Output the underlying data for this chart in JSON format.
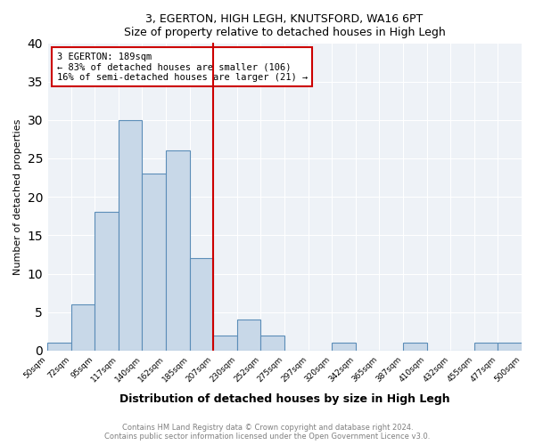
{
  "title": "3, EGERTON, HIGH LEGH, KNUTSFORD, WA16 6PT",
  "subtitle": "Size of property relative to detached houses in High Legh",
  "xlabel": "Distribution of detached houses by size in High Legh",
  "ylabel": "Number of detached properties",
  "bin_edges": [
    "50sqm",
    "72sqm",
    "95sqm",
    "117sqm",
    "140sqm",
    "162sqm",
    "185sqm",
    "207sqm",
    "230sqm",
    "252sqm",
    "275sqm",
    "297sqm",
    "320sqm",
    "342sqm",
    "365sqm",
    "387sqm",
    "410sqm",
    "432sqm",
    "455sqm",
    "477sqm",
    "500sqm"
  ],
  "counts": [
    1,
    6,
    18,
    30,
    23,
    26,
    12,
    2,
    4,
    2,
    0,
    0,
    1,
    0,
    0,
    1,
    0,
    0,
    1,
    1
  ],
  "bar_color": "#c8d8e8",
  "bar_edge_color": "#5b8db8",
  "property_line_after_bin": 6,
  "property_line_label": "3 EGERTON: 189sqm",
  "annotation_line1": "← 83% of detached houses are smaller (106)",
  "annotation_line2": "16% of semi-detached houses are larger (21) →",
  "ylim": [
    0,
    40
  ],
  "yticks": [
    0,
    5,
    10,
    15,
    20,
    25,
    30,
    35,
    40
  ],
  "red_line_color": "#cc0000",
  "annotation_box_color": "#cc0000",
  "footer1": "Contains HM Land Registry data © Crown copyright and database right 2024.",
  "footer2": "Contains public sector information licensed under the Open Government Licence v3.0.",
  "bg_color": "#eef2f7"
}
